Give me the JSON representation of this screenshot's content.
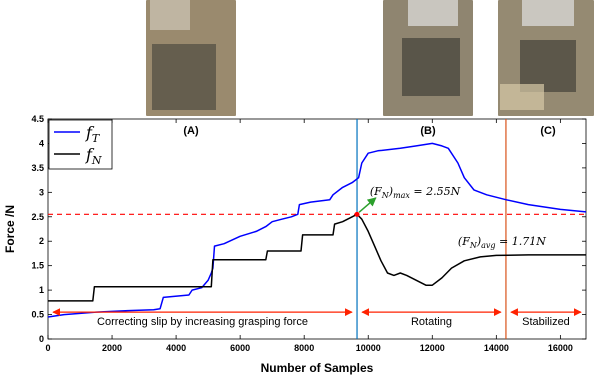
{
  "photos": [
    {
      "label": "(A)",
      "tone": "#9a8a6e"
    },
    {
      "label": "(B)",
      "tone": "#8f8570"
    },
    {
      "label": "(C)",
      "tone": "#958a72"
    }
  ],
  "chart_data": {
    "type": "line",
    "title": "",
    "xlabel": "Number of Samples",
    "ylabel": "Force /N",
    "xlim": [
      0,
      16800
    ],
    "ylim": [
      0,
      4.5
    ],
    "xticks": [
      0,
      2000,
      4000,
      6000,
      8000,
      10000,
      12000,
      14000,
      16000
    ],
    "yticks": [
      0,
      0.5,
      1,
      1.5,
      2,
      2.5,
      3,
      3.5,
      4,
      4.5
    ],
    "grid": false,
    "legend": {
      "placement": "top-left"
    },
    "series": [
      {
        "name": "f_T",
        "label_main": "f",
        "label_sub": "T",
        "color": "#0000ff",
        "points": [
          [
            0,
            0.45
          ],
          [
            500,
            0.5
          ],
          [
            1500,
            0.55
          ],
          [
            2500,
            0.58
          ],
          [
            3300,
            0.6
          ],
          [
            3500,
            0.62
          ],
          [
            3600,
            0.85
          ],
          [
            4400,
            0.9
          ],
          [
            4500,
            1.0
          ],
          [
            4800,
            1.05
          ],
          [
            5000,
            1.2
          ],
          [
            5100,
            1.35
          ],
          [
            5150,
            1.45
          ],
          [
            5200,
            1.9
          ],
          [
            5500,
            1.95
          ],
          [
            6000,
            2.1
          ],
          [
            6500,
            2.2
          ],
          [
            6800,
            2.3
          ],
          [
            7000,
            2.4
          ],
          [
            7300,
            2.45
          ],
          [
            7600,
            2.5
          ],
          [
            7800,
            2.55
          ],
          [
            7850,
            2.75
          ],
          [
            8200,
            2.8
          ],
          [
            8800,
            2.85
          ],
          [
            8900,
            2.95
          ],
          [
            9200,
            3.1
          ],
          [
            9500,
            3.2
          ],
          [
            9700,
            3.3
          ],
          [
            9800,
            3.6
          ],
          [
            10000,
            3.8
          ],
          [
            10300,
            3.85
          ],
          [
            11000,
            3.9
          ],
          [
            11500,
            3.95
          ],
          [
            12000,
            4.0
          ],
          [
            12300,
            3.95
          ],
          [
            12500,
            3.9
          ],
          [
            12800,
            3.6
          ],
          [
            13000,
            3.3
          ],
          [
            13300,
            3.05
          ],
          [
            13700,
            2.95
          ],
          [
            14300,
            2.85
          ],
          [
            15000,
            2.75
          ],
          [
            16000,
            2.65
          ],
          [
            16800,
            2.6
          ]
        ]
      },
      {
        "name": "f_N",
        "label_main": "f",
        "label_sub": "N",
        "color": "#000000",
        "points": [
          [
            0,
            0.78
          ],
          [
            1400,
            0.78
          ],
          [
            1450,
            1.07
          ],
          [
            5100,
            1.07
          ],
          [
            5150,
            1.62
          ],
          [
            6800,
            1.62
          ],
          [
            6850,
            1.8
          ],
          [
            7900,
            1.8
          ],
          [
            7950,
            2.13
          ],
          [
            8900,
            2.13
          ],
          [
            8950,
            2.35
          ],
          [
            9200,
            2.4
          ],
          [
            9500,
            2.5
          ],
          [
            9650,
            2.55
          ],
          [
            9800,
            2.45
          ],
          [
            10000,
            2.2
          ],
          [
            10200,
            1.9
          ],
          [
            10400,
            1.6
          ],
          [
            10600,
            1.35
          ],
          [
            10800,
            1.3
          ],
          [
            11000,
            1.35
          ],
          [
            11200,
            1.3
          ],
          [
            11500,
            1.2
          ],
          [
            11800,
            1.1
          ],
          [
            12000,
            1.1
          ],
          [
            12300,
            1.25
          ],
          [
            12600,
            1.45
          ],
          [
            13000,
            1.6
          ],
          [
            13500,
            1.68
          ],
          [
            14000,
            1.71
          ],
          [
            15000,
            1.72
          ],
          [
            16800,
            1.72
          ]
        ]
      }
    ],
    "reference_line": {
      "y": 2.55,
      "color": "#ff0000",
      "style": "dashed"
    },
    "vlines": [
      {
        "x": 9650,
        "color": "#0072bd"
      },
      {
        "x": 14300,
        "color": "#d95319"
      }
    ],
    "max_marker": {
      "x": 9650,
      "y": 2.55,
      "color": "#ff0000"
    },
    "annotations": {
      "max": {
        "text": "(F_N)_max = 2.55N",
        "lhs_var": "F",
        "lhs_sub": "N",
        "lhs_sub2": "max",
        "rhs": "= 2.55N",
        "x": 10050,
        "y": 2.95
      },
      "avg": {
        "text": "(F_N)_avg = 1.71N",
        "lhs_var": "F",
        "lhs_sub": "N",
        "lhs_sub2": "avg",
        "rhs": "= 1.71N",
        "x": 12800,
        "y": 1.92
      }
    },
    "phases": [
      {
        "label": "Correcting slip by increasing grasping force",
        "x0": 0,
        "x1": 9650
      },
      {
        "label": "Rotating",
        "x0": 9650,
        "x1": 14300
      },
      {
        "label": "Stabilized",
        "x0": 14300,
        "x1": 16800
      }
    ],
    "phase_arrow_y": 0.55,
    "phase_color": "#ff2200",
    "arrow_color": "#2ca02c"
  }
}
